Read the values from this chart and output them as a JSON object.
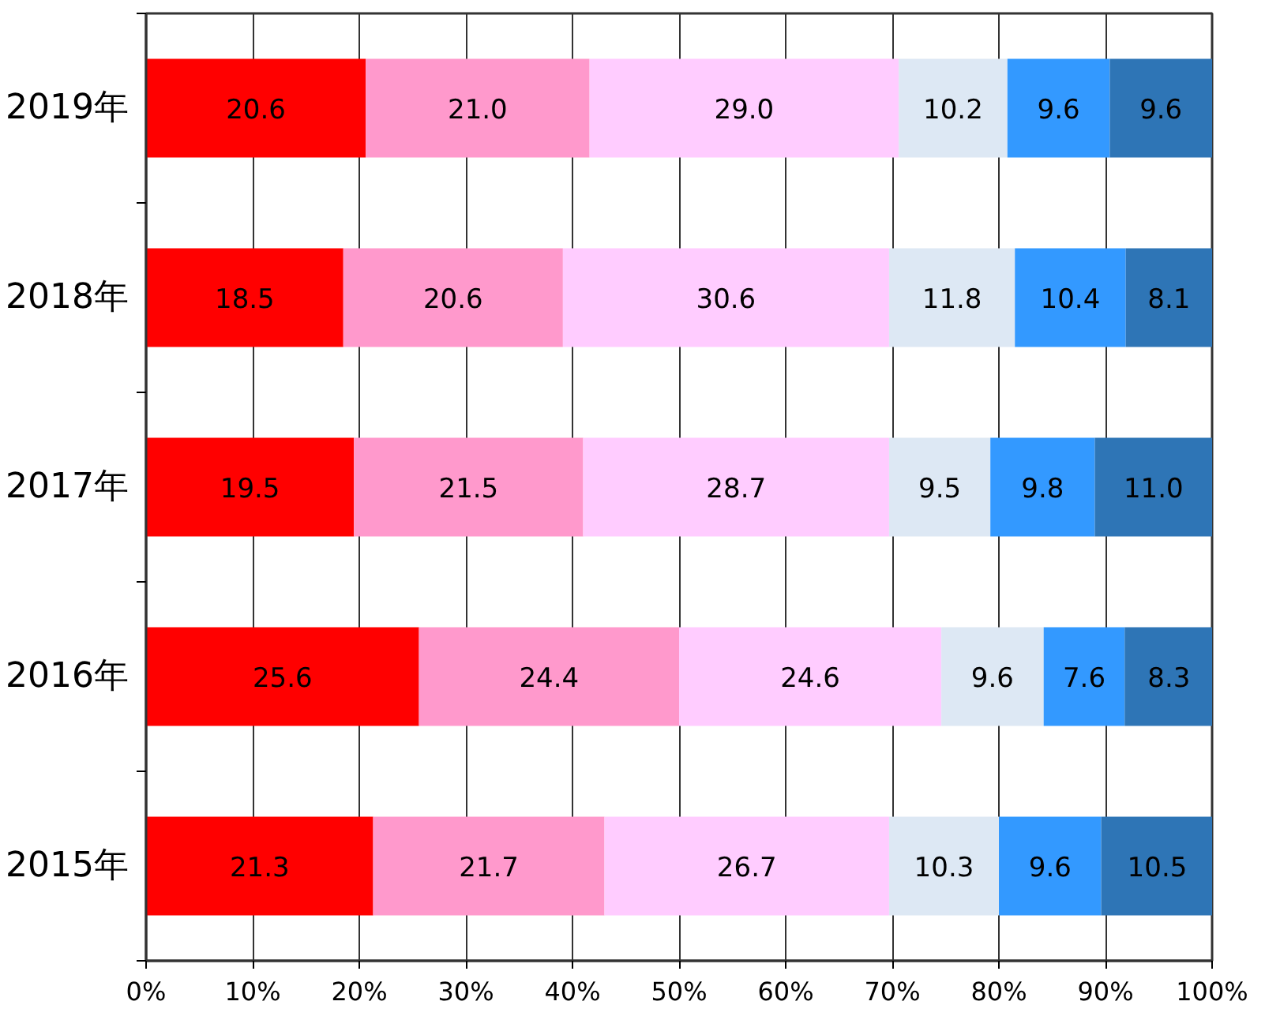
{
  "chart_data": {
    "type": "bar",
    "orientation": "horizontal",
    "stacked": true,
    "categories": [
      "2019年",
      "2018年",
      "2017年",
      "2016年",
      "2015年"
    ],
    "series": [
      {
        "color": "#ff0000",
        "values": [
          20.6,
          18.5,
          19.5,
          25.6,
          21.3
        ],
        "value_labels": [
          "20.6",
          "18.5",
          "19.5",
          "25.6",
          "21.3"
        ]
      },
      {
        "color": "#ff99cc",
        "values": [
          21.0,
          20.6,
          21.5,
          24.4,
          21.7
        ],
        "value_labels": [
          "21.0",
          "20.6",
          "21.5",
          "24.4",
          "21.7"
        ]
      },
      {
        "color": "#ffccff",
        "values": [
          29.0,
          30.6,
          28.7,
          24.6,
          26.7
        ],
        "value_labels": [
          "29.0",
          "30.6",
          "28.7",
          "24.6",
          "26.7"
        ]
      },
      {
        "color": "#dde8f4",
        "values": [
          10.2,
          11.8,
          9.5,
          9.6,
          10.3
        ],
        "value_labels": [
          "10.2",
          "11.8",
          "9.5",
          "9.6",
          "10.3"
        ]
      },
      {
        "color": "#3399ff",
        "values": [
          9.6,
          10.4,
          9.8,
          7.6,
          9.6
        ],
        "value_labels": [
          "9.6",
          "10.4",
          "9.8",
          "7.6",
          "9.6"
        ]
      },
      {
        "color": "#2e75b6",
        "values": [
          9.6,
          8.1,
          11.0,
          8.3,
          10.5
        ],
        "value_labels": [
          "9.6",
          "8.1",
          "11.0",
          "8.3",
          "10.5"
        ]
      }
    ],
    "xlim": [
      0,
      100
    ],
    "xticks": [
      {
        "value": 0,
        "label": "0%"
      },
      {
        "value": 10,
        "label": "10%"
      },
      {
        "value": 20,
        "label": "20%"
      },
      {
        "value": 30,
        "label": "30%"
      },
      {
        "value": 40,
        "label": "40%"
      },
      {
        "value": 50,
        "label": "50%"
      },
      {
        "value": 60,
        "label": "60%"
      },
      {
        "value": 70,
        "label": "70%"
      },
      {
        "value": 80,
        "label": "80%"
      },
      {
        "value": 90,
        "label": "90%"
      },
      {
        "value": 100,
        "label": "100%"
      }
    ],
    "grid": "x"
  }
}
